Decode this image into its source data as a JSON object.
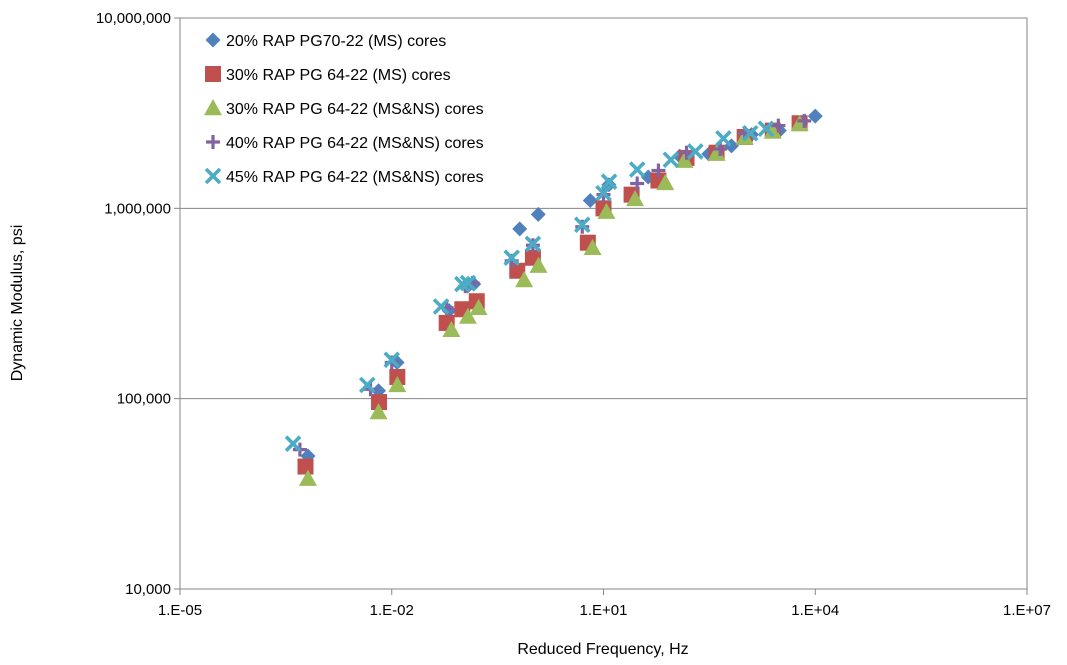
{
  "chart_data": {
    "type": "scatter",
    "title": "",
    "xlabel": "Reduced Frequency, Hz",
    "ylabel": "Dynamic Modulus, psi",
    "xscale": "log",
    "yscale": "log",
    "xlim": [
      1e-05,
      10000000
    ],
    "ylim": [
      10000,
      10000000
    ],
    "x_ticks": [
      1e-05,
      0.01,
      10,
      10000,
      10000000
    ],
    "x_tick_labels": [
      "1.E-05",
      "1.E-02",
      "1.E+01",
      "1.E+04",
      "1.E+07"
    ],
    "y_ticks": [
      10000,
      100000,
      1000000,
      10000000
    ],
    "y_tick_labels": [
      "10,000",
      "100,000",
      "1,000,000",
      "10,000,000"
    ],
    "grid": "horizontal major gridlines",
    "legend_position": "top-left",
    "series": [
      {
        "name": "20% RAP PG70-22 (MS) cores",
        "marker": "diamond",
        "color": "#4F81BD",
        "x": [
          0.00065,
          0.0065,
          0.0119,
          0.065,
          0.119,
          0.145,
          0.65,
          1.19,
          6.5,
          11.9,
          43,
          120,
          310,
          650,
          1250,
          3100,
          6200,
          10000
        ],
        "y": [
          50000,
          110000,
          155000,
          290000,
          390000,
          400000,
          780000,
          930000,
          1100000,
          1330000,
          1460000,
          1880000,
          1930000,
          2130000,
          2440000,
          2560000,
          2780000,
          3050000
        ]
      },
      {
        "name": "30% RAP PG 64-22 (MS) cores",
        "marker": "square",
        "color": "#C0504D",
        "x": [
          0.0006,
          0.0066,
          0.012,
          0.06,
          0.1,
          0.16,
          0.6,
          1.0,
          6.0,
          10,
          25,
          60,
          150,
          400,
          1000,
          2500,
          6000
        ],
        "y": [
          44000,
          96000,
          130000,
          250000,
          295000,
          325000,
          470000,
          550000,
          660000,
          1000000,
          1180000,
          1400000,
          1840000,
          1960000,
          2370000,
          2560000,
          2800000
        ]
      },
      {
        "name": "30% RAP PG 64-22 (MS&NS) cores",
        "marker": "triangle",
        "color": "#9BBB59",
        "x": [
          0.00065,
          0.0065,
          0.012,
          0.07,
          0.12,
          0.17,
          0.75,
          1.2,
          7.0,
          11,
          28,
          75,
          140,
          400,
          1000,
          2500,
          6000
        ],
        "y": [
          38000,
          85000,
          118000,
          230000,
          270000,
          300000,
          420000,
          500000,
          620000,
          960000,
          1120000,
          1360000,
          1780000,
          1940000,
          2350000,
          2540000,
          2780000
        ]
      },
      {
        "name": "40% RAP PG 64-22 (MS&NS) cores",
        "marker": "plus",
        "color": "#8064A2",
        "x": [
          0.0005,
          0.005,
          0.01,
          0.06,
          0.11,
          0.14,
          0.5,
          1.0,
          5.0,
          10,
          30,
          60,
          150,
          450,
          1000,
          3000,
          7000
        ],
        "y": [
          54000,
          112000,
          155000,
          300000,
          390000,
          405000,
          530000,
          640000,
          800000,
          1180000,
          1350000,
          1580000,
          1960000,
          2050000,
          2480000,
          2720000,
          2880000
        ]
      },
      {
        "name": "45% RAP PG 64-22 (MS&NS) cores",
        "marker": "x",
        "color": "#4BACC6",
        "x": [
          0.0004,
          0.0045,
          0.01,
          0.05,
          0.1,
          0.12,
          0.5,
          1.0,
          5.0,
          10,
          12,
          30,
          90,
          200,
          500,
          1200,
          2000
        ],
        "y": [
          58000,
          118000,
          160000,
          305000,
          400000,
          405000,
          550000,
          650000,
          820000,
          1200000,
          1380000,
          1600000,
          1800000,
          1990000,
          2330000,
          2480000,
          2620000
        ]
      }
    ]
  }
}
